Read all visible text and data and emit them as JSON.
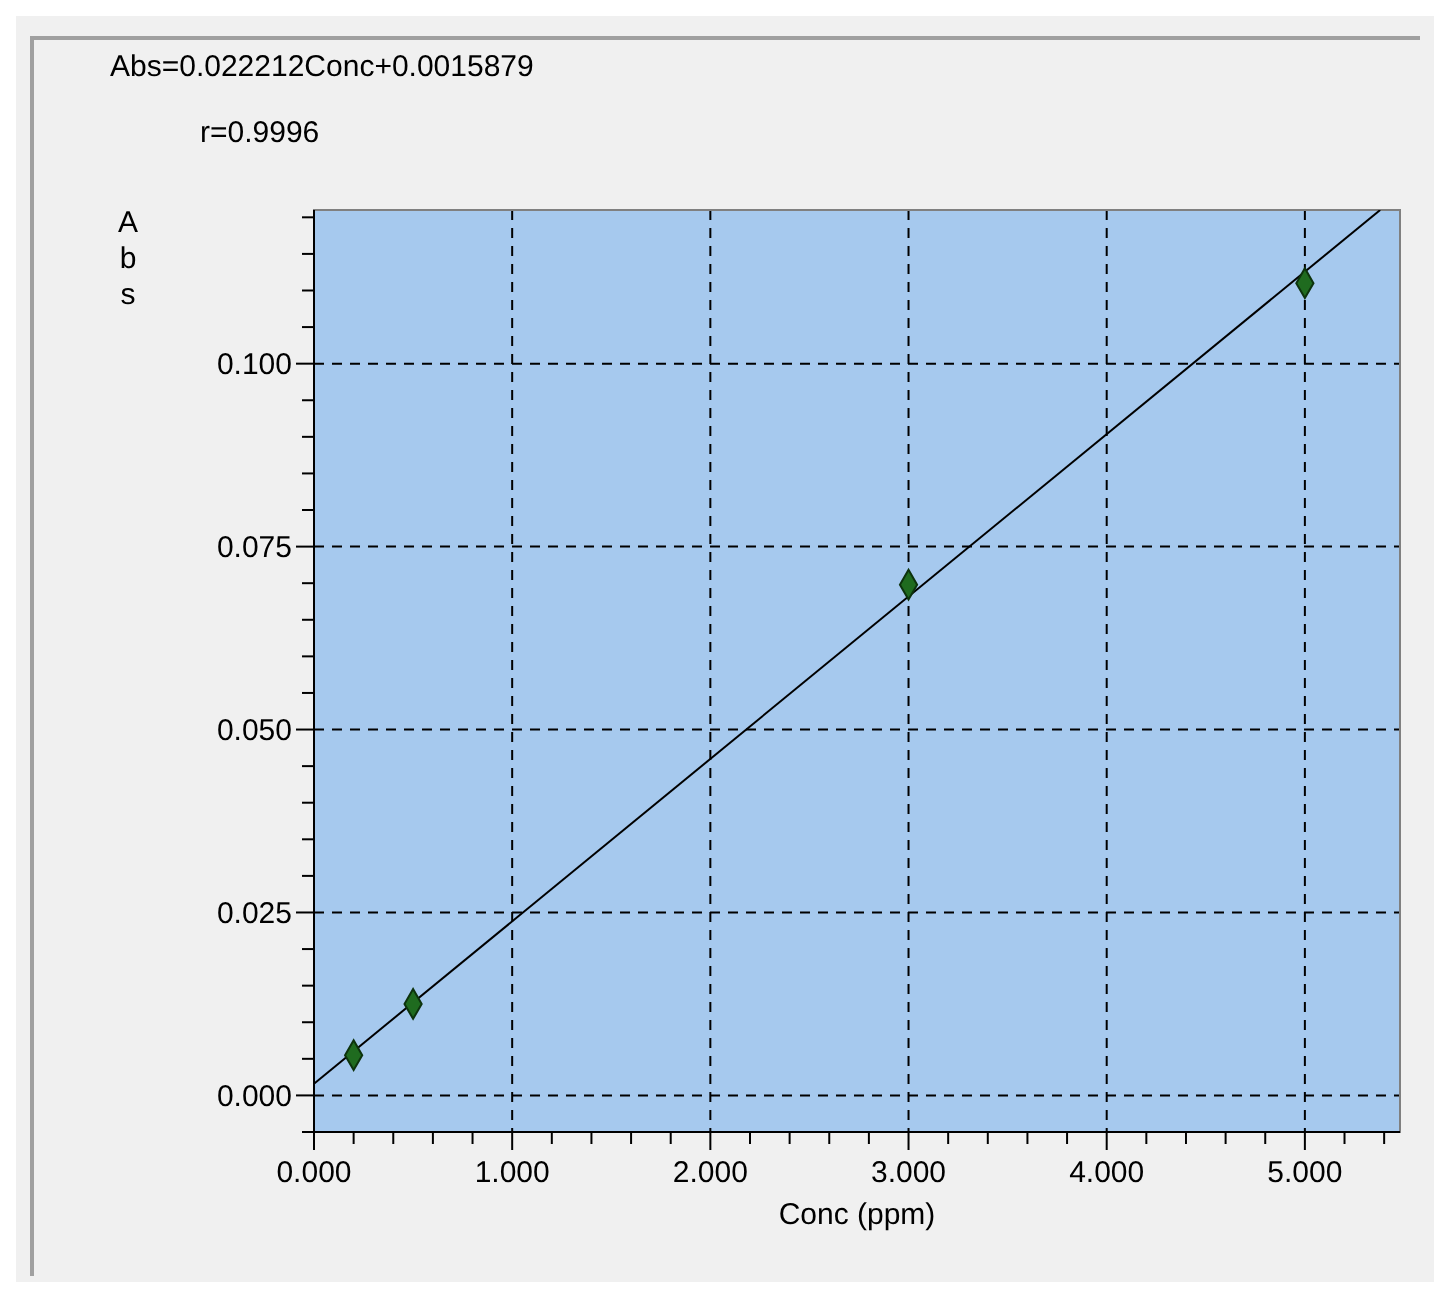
{
  "chart_data": {
    "type": "scatter",
    "xlabel": "Conc (ppm)",
    "ylabel": "Abs",
    "annotations": [
      "Abs=0.022212Conc+0.0015879",
      "r=0.9996"
    ],
    "series": [
      {
        "color": "#1f6b1f",
        "x": [
          0.2,
          0.5,
          3.0,
          5.0
        ],
        "values": [
          0.0055,
          0.0125,
          0.0698,
          0.111
        ]
      },
      {
        "type": "line",
        "color": "#000000",
        "marker": "none",
        "x": [
          0,
          5.38
        ],
        "values": [
          0.0016,
          0.121
        ]
      }
    ],
    "marker": "diamond",
    "line_style": "solid",
    "grid": true,
    "xlim": [
      0,
      5.48
    ],
    "ylim": [
      -0.005,
      0.121
    ],
    "xticks": [
      {
        "value": 0,
        "label": "0.000"
      },
      {
        "value": 0.2,
        "label": null
      },
      {
        "value": 0.4,
        "label": null
      },
      {
        "value": 0.6,
        "label": null
      },
      {
        "value": 0.8,
        "label": null
      },
      {
        "value": 1,
        "label": "1.000"
      },
      {
        "value": 1.2,
        "label": null
      },
      {
        "value": 1.4,
        "label": null
      },
      {
        "value": 1.6,
        "label": null
      },
      {
        "value": 1.8,
        "label": null
      },
      {
        "value": 2,
        "label": "2.000"
      },
      {
        "value": 2.2,
        "label": null
      },
      {
        "value": 2.4,
        "label": null
      },
      {
        "value": 2.6,
        "label": null
      },
      {
        "value": 2.8,
        "label": null
      },
      {
        "value": 3,
        "label": "3.000"
      },
      {
        "value": 3.2,
        "label": null
      },
      {
        "value": 3.4,
        "label": null
      },
      {
        "value": 3.6,
        "label": null
      },
      {
        "value": 3.8,
        "label": null
      },
      {
        "value": 4,
        "label": "4.000"
      },
      {
        "value": 4.2,
        "label": null
      },
      {
        "value": 4.4,
        "label": null
      },
      {
        "value": 4.6,
        "label": null
      },
      {
        "value": 4.8,
        "label": null
      },
      {
        "value": 5,
        "label": "5.000"
      },
      {
        "value": 5.2,
        "label": null
      },
      {
        "value": 5.4,
        "label": null
      }
    ],
    "yticks": [
      {
        "value": -0.005,
        "label": null
      },
      {
        "value": 0,
        "label": "0.000"
      },
      {
        "value": 0.005,
        "label": null
      },
      {
        "value": 0.01,
        "label": null
      },
      {
        "value": 0.015,
        "label": null
      },
      {
        "value": 0.02,
        "label": null
      },
      {
        "value": 0.025,
        "label": "0.025"
      },
      {
        "value": 0.03,
        "label": null
      },
      {
        "value": 0.035,
        "label": null
      },
      {
        "value": 0.04,
        "label": null
      },
      {
        "value": 0.045,
        "label": null
      },
      {
        "value": 0.05,
        "label": "0.050"
      },
      {
        "value": 0.055,
        "label": null
      },
      {
        "value": 0.06,
        "label": null
      },
      {
        "value": 0.065,
        "label": null
      },
      {
        "value": 0.07,
        "label": null
      },
      {
        "value": 0.075,
        "label": "0.075"
      },
      {
        "value": 0.08,
        "label": null
      },
      {
        "value": 0.085,
        "label": null
      },
      {
        "value": 0.09,
        "label": null
      },
      {
        "value": 0.095,
        "label": null
      },
      {
        "value": 0.1,
        "label": "0.100"
      },
      {
        "value": 0.105,
        "label": null
      },
      {
        "value": 0.11,
        "label": null
      },
      {
        "value": 0.115,
        "label": null
      },
      {
        "value": 0.12,
        "label": null
      }
    ]
  }
}
